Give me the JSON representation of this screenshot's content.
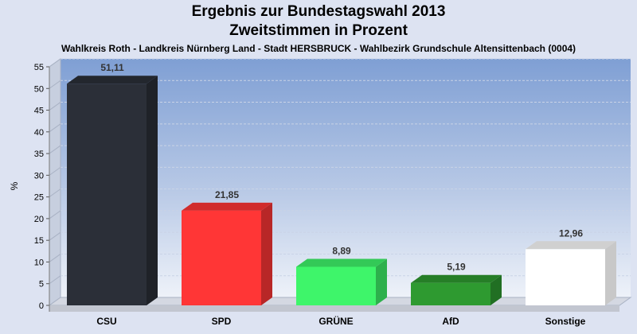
{
  "chart_data": {
    "type": "bar",
    "title_line1": "Ergebnis zur Bundestagswahl 2013",
    "title_line2": "Zweitstimmen in Prozent",
    "subtitle": "Wahlkreis Roth - Landkreis Nürnberg Land - Stadt HERSBRUCK - Wahlbezirk Grundschule Altensittenbach (0004)",
    "ylabel": "%",
    "xlabel": "",
    "ylim": [
      0,
      55
    ],
    "yticks": [
      0,
      5,
      10,
      15,
      20,
      25,
      30,
      35,
      40,
      45,
      50,
      55
    ],
    "categories": [
      "CSU",
      "SPD",
      "GRÜNE",
      "AfD",
      "Sonstige"
    ],
    "values": [
      51.11,
      21.85,
      8.89,
      5.19,
      12.96
    ],
    "value_labels": [
      "51,11",
      "21,85",
      "8,89",
      "5,19",
      "12,96"
    ],
    "colors": [
      "#2b2f38",
      "#ff3636",
      "#3ef56a",
      "#2e9a30",
      "#ffffff"
    ],
    "grid": true,
    "legend": "none"
  }
}
